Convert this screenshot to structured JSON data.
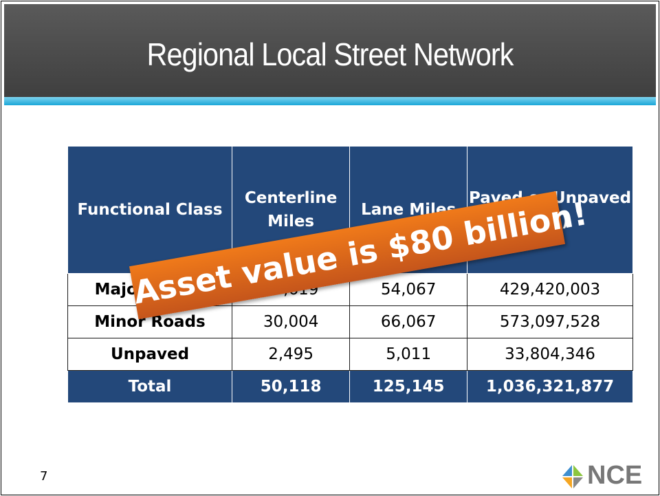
{
  "title": "Regional Local Street Network",
  "table": {
    "header": [
      "Functional Class",
      "Centerline Miles",
      "Lane Miles",
      "Paved or Unpaved (SY)"
    ],
    "rows": [
      [
        "Major Roads",
        "17,619",
        "54,067",
        "429,420,003"
      ],
      [
        "Minor Roads",
        "30,004",
        "66,067",
        "573,097,528"
      ],
      [
        "Unpaved",
        "2,495",
        "5,011",
        "33,804,346"
      ]
    ],
    "total": [
      "Total",
      "50,118",
      "125,145",
      "1,036,321,877"
    ]
  },
  "callout": "Asset value is $80 billion!",
  "page_number": "7",
  "logo": "NCE"
}
